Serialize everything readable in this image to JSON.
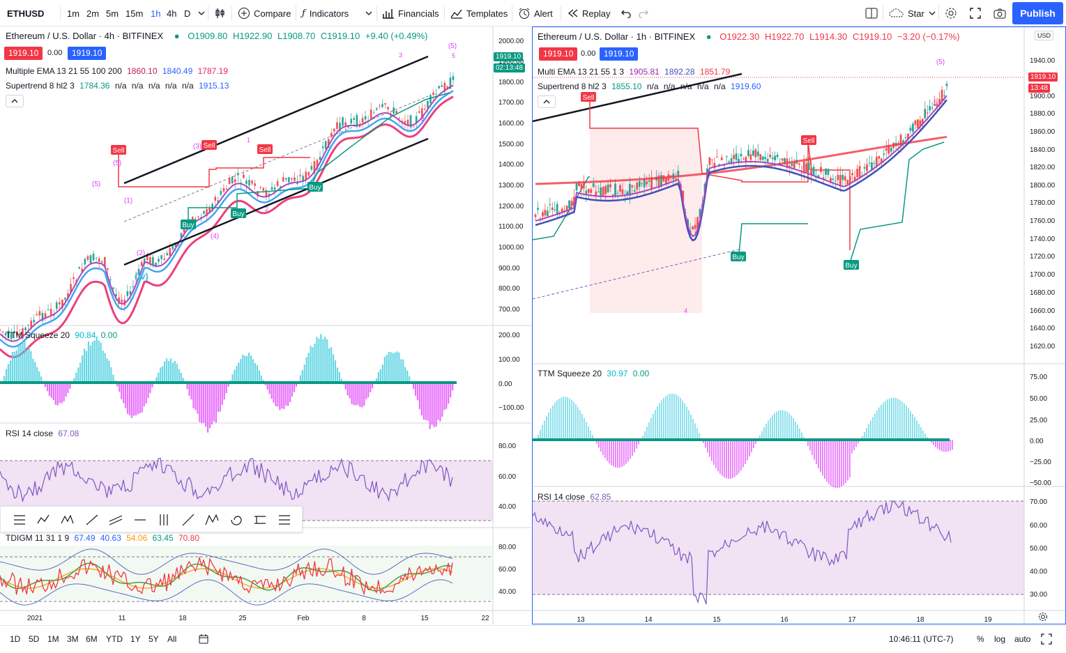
{
  "toolbar": {
    "symbol": "ETHUSD",
    "intervals": [
      "1m",
      "2m",
      "5m",
      "15m",
      "1h",
      "4h",
      "D"
    ],
    "active_interval": "1h",
    "compare": "Compare",
    "indicators": "Indicators",
    "financials": "Financials",
    "templates": "Templates",
    "alert": "Alert",
    "replay": "Replay",
    "star": "Star",
    "publish": "Publish"
  },
  "left_chart": {
    "title": "Ethereum / U.S. Dollar · 4h · BITFINEX",
    "ohlc": {
      "o": "O1909.80",
      "h": "H1922.90",
      "l": "L1908.70",
      "c": "C1919.10",
      "chg": "+9.40 (+0.49%)"
    },
    "bid": "1919.10",
    "spread": "0.00",
    "ask": "1919.10",
    "ema_label": "Multiple EMA 13 21 55 100 200",
    "ema_values": [
      "1860.10",
      "1840.49",
      "1787.19"
    ],
    "st_label": "Supertrend 8 hl2 3",
    "st_values": [
      "1784.36",
      "n/a",
      "n/a",
      "n/a",
      "n/a",
      "n/a",
      "1915.13"
    ],
    "price_axis": [
      "2000.00",
      "1900.00",
      "1800.00",
      "1700.00",
      "1600.00",
      "1500.00",
      "1400.00",
      "1300.00",
      "1200.00",
      "1100.00",
      "1000.00",
      "900.00",
      "800.00",
      "700.00"
    ],
    "price_tag": "1919.10",
    "countdown": "02:13:48",
    "ttm_label": "TTM Squeeze 20",
    "ttm_values": [
      "90.84",
      "0.00"
    ],
    "ttm_axis": [
      "200.00",
      "100.00",
      "0.00",
      "−100.00"
    ],
    "rsi_label": "RSI 14 close",
    "rsi_value": "67.08",
    "rsi_axis": [
      "80.00",
      "60.00",
      "40.00"
    ],
    "tdi_label": "TDIGM 11 31 1 9",
    "tdi_values": [
      "67.49",
      "40.63",
      "54.06",
      "63.45",
      "70.80"
    ],
    "tdi_axis": [
      "80.00",
      "60.00",
      "40.00"
    ],
    "time_axis": [
      "2021",
      "11",
      "18",
      "25",
      "Feb",
      "8",
      "15",
      "22"
    ],
    "annotations": {
      "sell": "Sell",
      "buy": "Buy",
      "w5": "(5)",
      "w1": "(1)",
      "w2": "(2)",
      "w3": "(3)",
      "w4": "(4)",
      "iv": "(iv)",
      "n1": "1",
      "n2": "2",
      "n3": "3",
      "n4": "4",
      "n5": "5"
    }
  },
  "right_chart": {
    "title": "Ethereum / U.S. Dollar · 1h · BITFINEX",
    "ohlc": {
      "o": "O1922.30",
      "h": "H1922.70",
      "l": "L1914.30",
      "c": "C1919.10",
      "chg": "−3.20 (−0.17%)"
    },
    "bid": "1919.10",
    "spread": "0.00",
    "ask": "1919.10",
    "ema_label": "Multi EMA 13 21 55 1 3",
    "ema_values": [
      "1905.81",
      "1892.28",
      "1851.79"
    ],
    "st_label": "Supertrend 8 hl2 3",
    "st_values": [
      "1855.10",
      "n/a",
      "n/a",
      "n/a",
      "n/a",
      "n/a",
      "1919.60"
    ],
    "currency": "USD",
    "price_axis": [
      "1940.00",
      "1900.00",
      "1880.00",
      "1860.00",
      "1840.00",
      "1820.00",
      "1800.00",
      "1780.00",
      "1760.00",
      "1740.00",
      "1720.00",
      "1700.00",
      "1680.00",
      "1660.00",
      "1640.00",
      "1620.00"
    ],
    "price_tag": "1919.10",
    "countdown": "13:48",
    "ttm_label": "TTM Squeeze 20",
    "ttm_values": [
      "30.97",
      "0.00"
    ],
    "ttm_axis": [
      "75.00",
      "50.00",
      "25.00",
      "0.00",
      "−25.00",
      "−50.00"
    ],
    "rsi_label": "RSI 14 close",
    "rsi_value": "62.85",
    "rsi_axis": [
      "70.00",
      "60.00",
      "50.00",
      "40.00",
      "30.00"
    ],
    "time_axis": [
      "13",
      "14",
      "15",
      "16",
      "17",
      "18",
      "19"
    ],
    "annotations": {
      "sell": "Sell",
      "buy": "Buy",
      "w5": "(5)",
      "n4": "4",
      "n5": "5"
    }
  },
  "bottombar": {
    "ranges": [
      "1D",
      "5D",
      "1M",
      "3M",
      "6M",
      "YTD",
      "1Y",
      "5Y",
      "All"
    ],
    "time": "10:46:11 (UTC-7)",
    "pct": "%",
    "log": "log",
    "auto": "auto"
  },
  "colors": {
    "accent": "#2962ff",
    "red": "#f23645",
    "green": "#089981",
    "magenta": "#e040fb",
    "cyan": "#4dd0e1"
  }
}
